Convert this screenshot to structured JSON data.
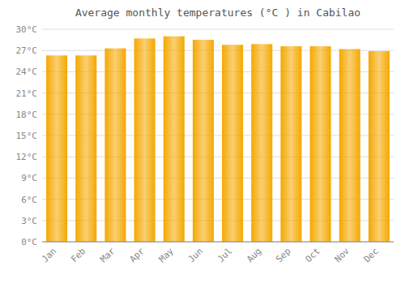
{
  "chart_data": {
    "type": "bar",
    "title": "Average monthly temperatures (°C ) in Cabilao",
    "categories": [
      "Jan",
      "Feb",
      "Mar",
      "Apr",
      "May",
      "Jun",
      "Jul",
      "Aug",
      "Sep",
      "Oct",
      "Nov",
      "Dec"
    ],
    "values": [
      26.3,
      26.3,
      27.3,
      28.7,
      29.0,
      28.5,
      27.8,
      27.9,
      27.6,
      27.6,
      27.2,
      26.9
    ],
    "color": "#F5A800",
    "ylim": [
      0,
      30
    ],
    "yticks": [
      {
        "value": 0,
        "label": "0°C"
      },
      {
        "value": 3,
        "label": "3°C"
      },
      {
        "value": 6,
        "label": "6°C"
      },
      {
        "value": 9,
        "label": "9°C"
      },
      {
        "value": 12,
        "label": "12°C"
      },
      {
        "value": 15,
        "label": "15°C"
      },
      {
        "value": 18,
        "label": "18°C"
      },
      {
        "value": 21,
        "label": "21°C"
      },
      {
        "value": 24,
        "label": "24°C"
      },
      {
        "value": 27,
        "label": "27°C"
      },
      {
        "value": 30,
        "label": "30°C"
      }
    ],
    "grid": true
  }
}
